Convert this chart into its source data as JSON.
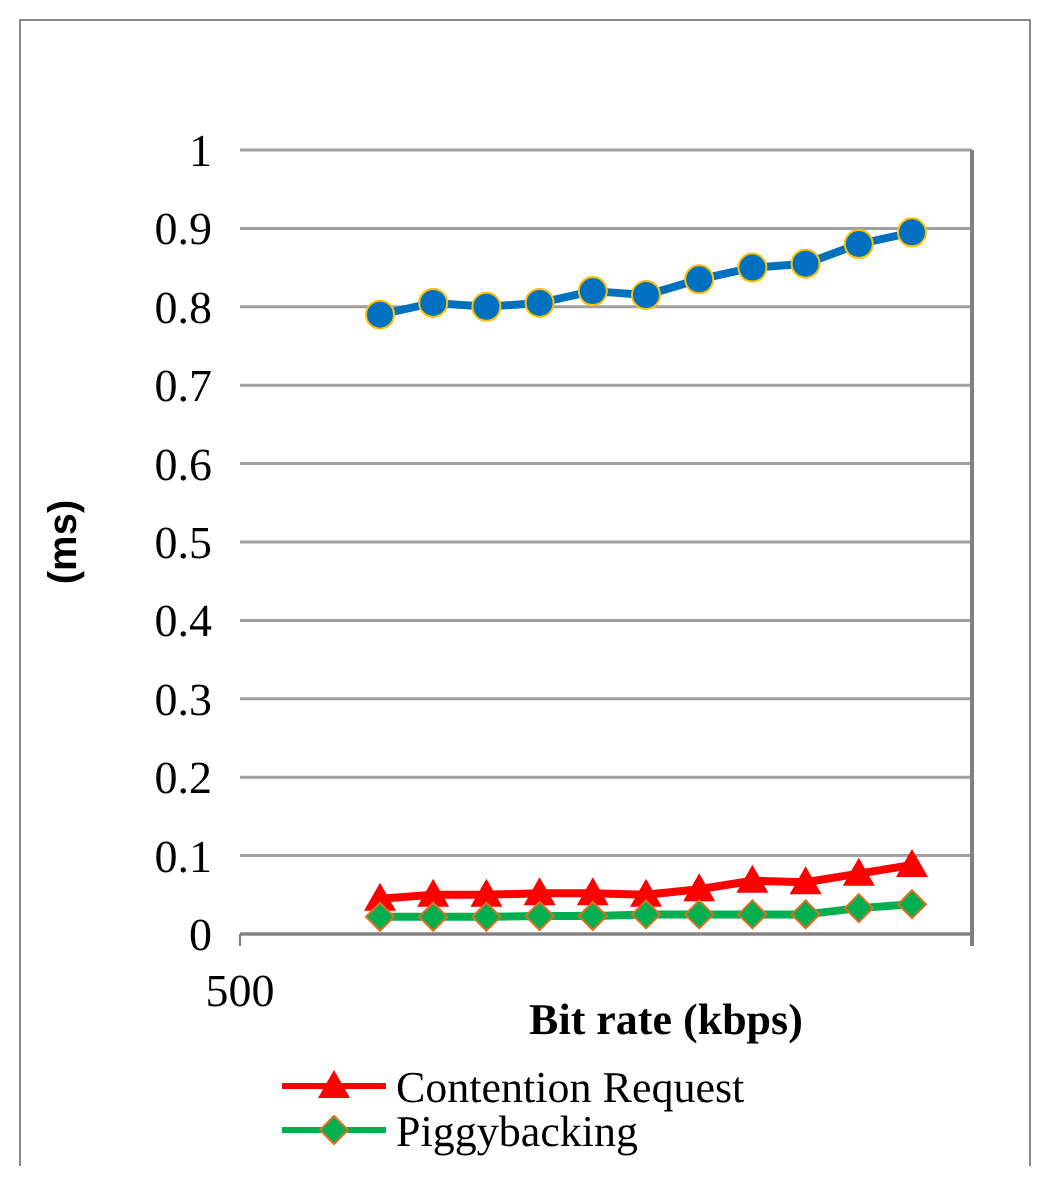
{
  "chart_data": {
    "type": "line",
    "xlabel": "Bit rate (kbps)",
    "ylabel": "(ms)",
    "annotations": [
      "500"
    ],
    "categories": [
      null,
      null,
      null,
      null,
      null,
      null,
      null,
      null,
      null,
      null,
      null
    ],
    "ylim": [
      0,
      1
    ],
    "yticks": [
      0,
      0.1,
      0.2,
      0.3,
      0.4,
      0.5,
      0.6,
      0.7,
      0.8,
      0.9,
      1
    ],
    "grid": "y",
    "legend": "bottom",
    "series": [
      {
        "color": "#0070c0",
        "marker": "circle",
        "values": [
          0.79,
          0.805,
          0.8,
          0.805,
          0.82,
          0.815,
          0.835,
          0.85,
          0.855,
          0.88,
          0.895
        ]
      },
      {
        "name": "Contention Request",
        "color": "#ff0000",
        "marker": "triangle",
        "values": [
          0.045,
          0.05,
          0.05,
          0.052,
          0.052,
          0.05,
          0.057,
          0.068,
          0.066,
          0.077,
          0.088
        ]
      },
      {
        "name": "Piggybacking",
        "color": "#00b050",
        "marker": "diamond",
        "values": [
          0.022,
          0.022,
          0.022,
          0.023,
          0.023,
          0.025,
          0.025,
          0.025,
          0.025,
          0.033,
          0.038
        ]
      }
    ]
  }
}
